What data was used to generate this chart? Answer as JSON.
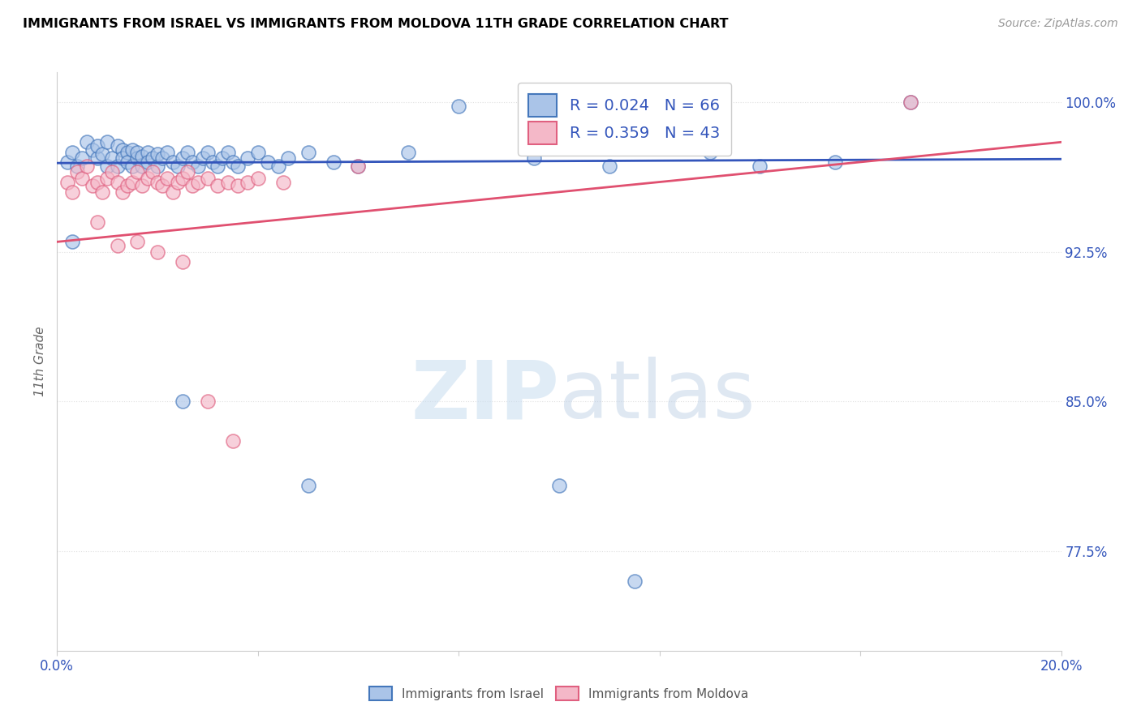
{
  "title": "IMMIGRANTS FROM ISRAEL VS IMMIGRANTS FROM MOLDOVA 11TH GRADE CORRELATION CHART",
  "source": "Source: ZipAtlas.com",
  "ylabel": "11th Grade",
  "xlim": [
    0.0,
    0.2
  ],
  "ylim": [
    0.725,
    1.015
  ],
  "israel_R": 0.024,
  "israel_N": 66,
  "moldova_R": 0.359,
  "moldova_N": 43,
  "israel_color": "#aac4e8",
  "moldova_color": "#f4b8c8",
  "israel_edge_color": "#4477bb",
  "moldova_edge_color": "#e06080",
  "israel_line_color": "#3355bb",
  "moldova_line_color": "#e05070",
  "legend_israel_label": "Immigrants from Israel",
  "legend_moldova_label": "Immigrants from Moldova",
  "israel_x": [
    0.002,
    0.003,
    0.004,
    0.005,
    0.006,
    0.007,
    0.008,
    0.008,
    0.009,
    0.01,
    0.01,
    0.011,
    0.012,
    0.012,
    0.013,
    0.013,
    0.014,
    0.014,
    0.015,
    0.015,
    0.016,
    0.016,
    0.017,
    0.017,
    0.018,
    0.018,
    0.019,
    0.02,
    0.02,
    0.021,
    0.022,
    0.023,
    0.024,
    0.025,
    0.026,
    0.027,
    0.028,
    0.029,
    0.03,
    0.031,
    0.032,
    0.033,
    0.034,
    0.035,
    0.036,
    0.038,
    0.04,
    0.042,
    0.044,
    0.046,
    0.05,
    0.055,
    0.06,
    0.07,
    0.08,
    0.095,
    0.11,
    0.13,
    0.155,
    0.17,
    0.003,
    0.025,
    0.05,
    0.1,
    0.115,
    0.14
  ],
  "israel_y": [
    0.97,
    0.975,
    0.968,
    0.972,
    0.98,
    0.976,
    0.972,
    0.978,
    0.974,
    0.98,
    0.968,
    0.972,
    0.978,
    0.968,
    0.976,
    0.972,
    0.975,
    0.97,
    0.968,
    0.976,
    0.972,
    0.975,
    0.968,
    0.973,
    0.975,
    0.97,
    0.972,
    0.968,
    0.974,
    0.972,
    0.975,
    0.97,
    0.968,
    0.972,
    0.975,
    0.97,
    0.968,
    0.972,
    0.975,
    0.97,
    0.968,
    0.972,
    0.975,
    0.97,
    0.968,
    0.972,
    0.975,
    0.97,
    0.968,
    0.972,
    0.975,
    0.97,
    0.968,
    0.975,
    0.998,
    0.972,
    0.968,
    0.975,
    0.97,
    1.0,
    0.93,
    0.85,
    0.808,
    0.808,
    0.76,
    0.968
  ],
  "moldova_x": [
    0.002,
    0.003,
    0.004,
    0.005,
    0.006,
    0.007,
    0.008,
    0.009,
    0.01,
    0.011,
    0.012,
    0.013,
    0.014,
    0.015,
    0.016,
    0.017,
    0.018,
    0.019,
    0.02,
    0.021,
    0.022,
    0.023,
    0.024,
    0.025,
    0.026,
    0.027,
    0.028,
    0.03,
    0.032,
    0.034,
    0.036,
    0.038,
    0.04,
    0.045,
    0.06,
    0.008,
    0.012,
    0.016,
    0.02,
    0.025,
    0.03,
    0.035,
    0.17
  ],
  "moldova_y": [
    0.96,
    0.955,
    0.965,
    0.962,
    0.968,
    0.958,
    0.96,
    0.955,
    0.962,
    0.965,
    0.96,
    0.955,
    0.958,
    0.96,
    0.965,
    0.958,
    0.962,
    0.965,
    0.96,
    0.958,
    0.962,
    0.955,
    0.96,
    0.962,
    0.965,
    0.958,
    0.96,
    0.962,
    0.958,
    0.96,
    0.958,
    0.96,
    0.962,
    0.96,
    0.968,
    0.94,
    0.928,
    0.93,
    0.925,
    0.92,
    0.85,
    0.83,
    1.0
  ],
  "israel_trendline": [
    0.0,
    0.2,
    0.9695,
    0.9715
  ],
  "moldova_trendline": [
    0.0,
    0.2,
    0.93,
    0.98
  ],
  "watermark_zip": "ZIP",
  "watermark_atlas": "atlas",
  "background_color": "#ffffff",
  "grid_color": "#e0e0e0"
}
